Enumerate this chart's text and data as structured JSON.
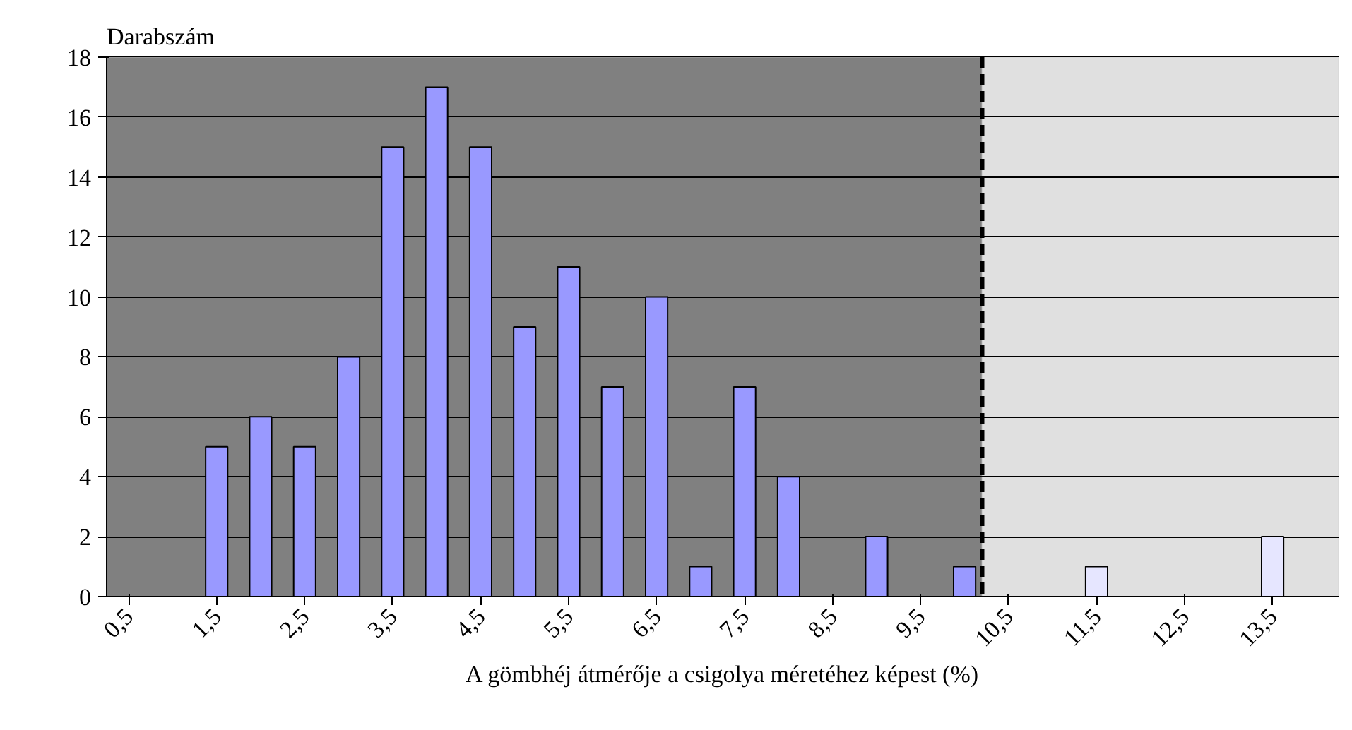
{
  "chart_data": {
    "type": "bar",
    "ylabel": "Darabszám",
    "xlabel": "A gömbhéj átmérője a csigolya méretéhez képest (%)",
    "x": [
      1.5,
      2,
      2.5,
      3,
      3.5,
      4,
      4.5,
      5,
      5.5,
      6,
      6.5,
      7,
      7.5,
      8,
      9,
      10,
      11.5,
      13.5
    ],
    "values": [
      5,
      6,
      5,
      8,
      15,
      17,
      15,
      9,
      11,
      7,
      10,
      1,
      7,
      4,
      2,
      1,
      1,
      2
    ],
    "colors": [
      "#9999ff",
      "#9999ff",
      "#9999ff",
      "#9999ff",
      "#9999ff",
      "#9999ff",
      "#9999ff",
      "#9999ff",
      "#9999ff",
      "#9999ff",
      "#9999ff",
      "#9999ff",
      "#9999ff",
      "#9999ff",
      "#9999ff",
      "#9999ff",
      "#e6e6ff",
      "#e6e6ff"
    ],
    "xlim": [
      0.25,
      14.25
    ],
    "xticks": [
      {
        "value": 0.5,
        "label": "0,5"
      },
      {
        "value": 1.5,
        "label": "1,5"
      },
      {
        "value": 2.5,
        "label": "2,5"
      },
      {
        "value": 3.5,
        "label": "3,5"
      },
      {
        "value": 4.5,
        "label": "4,5"
      },
      {
        "value": 5.5,
        "label": "5,5"
      },
      {
        "value": 6.5,
        "label": "6,5"
      },
      {
        "value": 7.5,
        "label": "7,5"
      },
      {
        "value": 8.5,
        "label": "8,5"
      },
      {
        "value": 9.5,
        "label": "9,5"
      },
      {
        "value": 10.5,
        "label": "10,5"
      },
      {
        "value": 11.5,
        "label": "11,5"
      },
      {
        "value": 12.5,
        "label": "12,5"
      },
      {
        "value": 13.5,
        "label": "13,5"
      }
    ],
    "ylim": [
      0,
      18
    ],
    "yticks": [
      0,
      2,
      4,
      6,
      8,
      10,
      12,
      14,
      16,
      18
    ],
    "grid": "y",
    "bands": [
      {
        "axis": "x",
        "from": 0.25,
        "to": 10.2,
        "color": "#808080"
      },
      {
        "axis": "x",
        "from": 10.2,
        "to": 14.25,
        "color": "#e0e0e0"
      }
    ],
    "ref_lines": [
      {
        "axis": "x",
        "value": 10.2,
        "color": "#000000",
        "line_style": "dashed"
      }
    ]
  }
}
